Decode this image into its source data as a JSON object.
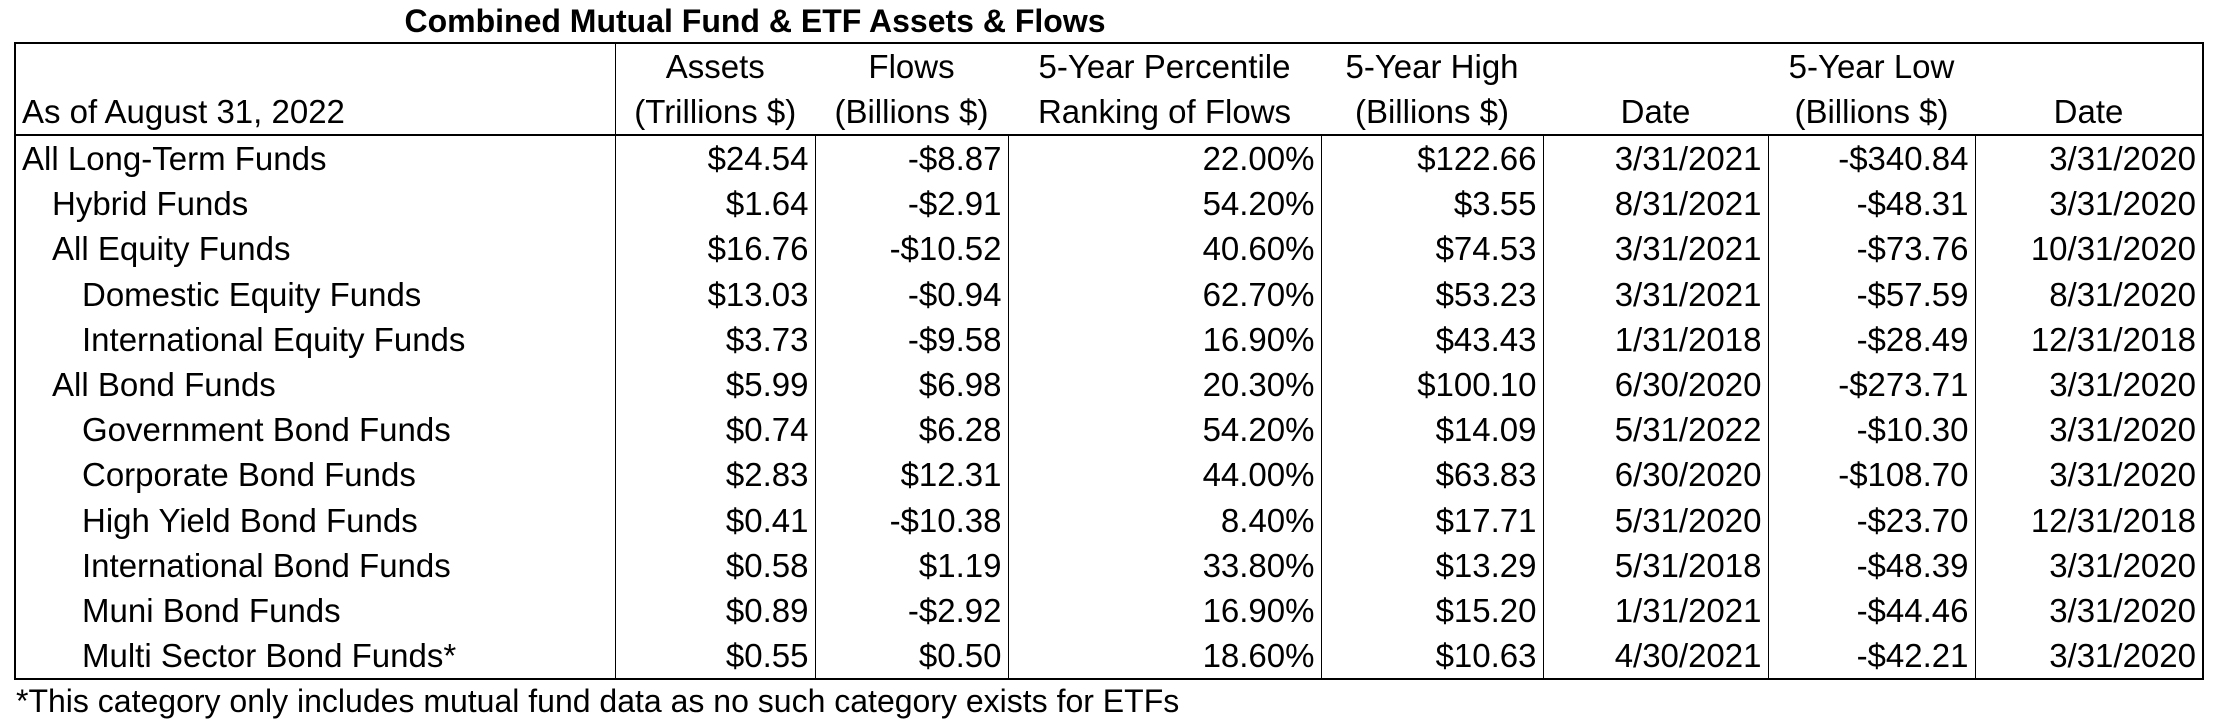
{
  "title": "Combined Mutual Fund & ETF Assets & Flows",
  "header": {
    "as_of": "As of August 31, 2022",
    "col1": [
      "Assets",
      "(Trillions $)"
    ],
    "col2": [
      "Flows",
      "(Billions $)"
    ],
    "col3": [
      "5-Year Percentile",
      "Ranking of Flows"
    ],
    "col4": [
      "5-Year High",
      "(Billions $)"
    ],
    "col5": [
      "",
      "Date"
    ],
    "col6": [
      "5-Year Low",
      "(Billions $)"
    ],
    "col7": [
      "",
      "Date"
    ]
  },
  "rows": [
    {
      "name": "All Long-Term Funds",
      "level": 0,
      "assets": "$24.54",
      "flows": "-$8.87",
      "pct": "22.00%",
      "high": "$122.66",
      "high_date": "3/31/2021",
      "low": "-$340.84",
      "low_date": "3/31/2020"
    },
    {
      "name": "Hybrid Funds",
      "level": 1,
      "assets": "$1.64",
      "flows": "-$2.91",
      "pct": "54.20%",
      "high": "$3.55",
      "high_date": "8/31/2021",
      "low": "-$48.31",
      "low_date": "3/31/2020"
    },
    {
      "name": "All Equity Funds",
      "level": 1,
      "assets": "$16.76",
      "flows": "-$10.52",
      "pct": "40.60%",
      "high": "$74.53",
      "high_date": "3/31/2021",
      "low": "-$73.76",
      "low_date": "10/31/2020"
    },
    {
      "name": "Domestic Equity Funds",
      "level": 2,
      "assets": "$13.03",
      "flows": "-$0.94",
      "pct": "62.70%",
      "high": "$53.23",
      "high_date": "3/31/2021",
      "low": "-$57.59",
      "low_date": "8/31/2020"
    },
    {
      "name": "International Equity Funds",
      "level": 2,
      "assets": "$3.73",
      "flows": "-$9.58",
      "pct": "16.90%",
      "high": "$43.43",
      "high_date": "1/31/2018",
      "low": "-$28.49",
      "low_date": "12/31/2018"
    },
    {
      "name": "All Bond Funds",
      "level": 1,
      "assets": "$5.99",
      "flows": "$6.98",
      "pct": "20.30%",
      "high": "$100.10",
      "high_date": "6/30/2020",
      "low": "-$273.71",
      "low_date": "3/31/2020"
    },
    {
      "name": "Government Bond Funds",
      "level": 2,
      "assets": "$0.74",
      "flows": "$6.28",
      "pct": "54.20%",
      "high": "$14.09",
      "high_date": "5/31/2022",
      "low": "-$10.30",
      "low_date": "3/31/2020"
    },
    {
      "name": "Corporate Bond Funds",
      "level": 2,
      "assets": "$2.83",
      "flows": "$12.31",
      "pct": "44.00%",
      "high": "$63.83",
      "high_date": "6/30/2020",
      "low": "-$108.70",
      "low_date": "3/31/2020"
    },
    {
      "name": "High Yield Bond Funds",
      "level": 2,
      "assets": "$0.41",
      "flows": "-$10.38",
      "pct": "8.40%",
      "high": "$17.71",
      "high_date": "5/31/2020",
      "low": "-$23.70",
      "low_date": "12/31/2018"
    },
    {
      "name": "International Bond Funds",
      "level": 2,
      "assets": "$0.58",
      "flows": "$1.19",
      "pct": "33.80%",
      "high": "$13.29",
      "high_date": "5/31/2018",
      "low": "-$48.39",
      "low_date": "3/31/2020"
    },
    {
      "name": "Muni Bond Funds",
      "level": 2,
      "assets": "$0.89",
      "flows": "-$2.92",
      "pct": "16.90%",
      "high": "$15.20",
      "high_date": "1/31/2021",
      "low": "-$44.46",
      "low_date": "3/31/2020"
    },
    {
      "name": "Multi Sector Bond Funds*",
      "level": 2,
      "assets": "$0.55",
      "flows": "$0.50",
      "pct": "18.60%",
      "high": "$10.63",
      "high_date": "4/30/2021",
      "low": "-$42.21",
      "low_date": "3/31/2020"
    }
  ],
  "footnote": "*This category only includes mutual fund data as no such category exists for ETFs"
}
